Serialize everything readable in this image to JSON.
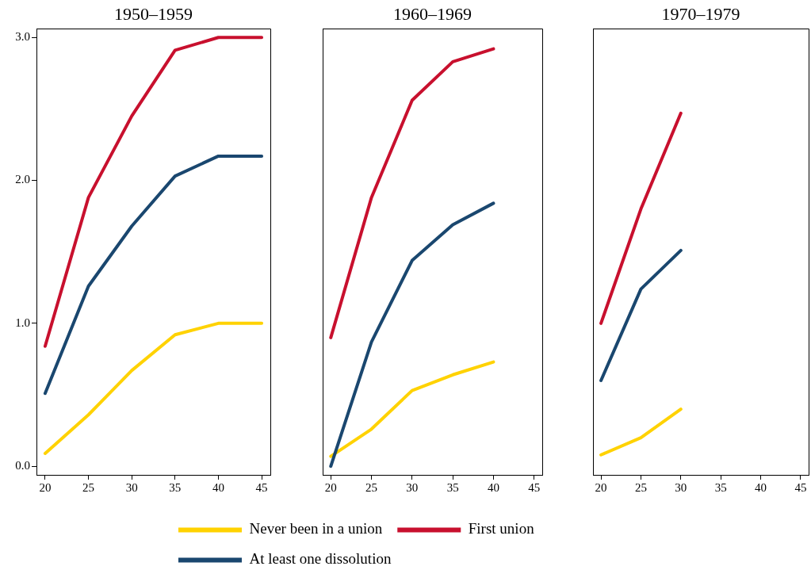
{
  "chart_data": [
    {
      "type": "line",
      "title": "1950–1959",
      "x": [
        20,
        25,
        30,
        35,
        40,
        45
      ],
      "series": [
        {
          "name": "Never been in a union",
          "color": "#ffd200",
          "values": [
            0.09,
            0.36,
            0.67,
            0.92,
            1.0,
            1.0
          ]
        },
        {
          "name": "First union",
          "color": "#c8102e",
          "values": [
            0.84,
            1.88,
            2.45,
            2.91,
            3.0,
            3.0
          ]
        },
        {
          "name": "At least one dissolution",
          "color": "#1a476f",
          "values": [
            0.51,
            1.26,
            1.68,
            2.03,
            2.17,
            2.17
          ]
        }
      ],
      "xlim": [
        19,
        46
      ],
      "xticks": [
        20,
        25,
        30,
        35,
        40,
        45
      ],
      "ylim": [
        -0.06,
        3.06
      ],
      "yticks": [
        {
          "value": 0,
          "label": "0.0"
        },
        {
          "value": 1,
          "label": "1.0"
        },
        {
          "value": 2,
          "label": "2.0"
        },
        {
          "value": 3,
          "label": "3.0"
        }
      ],
      "legend": "bottom"
    },
    {
      "type": "line",
      "title": "1960–1969",
      "x": [
        20,
        25,
        30,
        35,
        40
      ],
      "series": [
        {
          "color": "#ffd200",
          "values": [
            0.07,
            0.26,
            0.53,
            0.64,
            0.73
          ]
        },
        {
          "color": "#c8102e",
          "values": [
            0.9,
            1.88,
            2.56,
            2.83,
            2.92
          ]
        },
        {
          "color": "#1a476f",
          "values": [
            0.0,
            0.87,
            1.44,
            1.69,
            1.84
          ]
        }
      ],
      "xlim": [
        19,
        46
      ],
      "xticks": [
        20,
        25,
        30,
        35,
        40,
        45
      ],
      "ylim": [
        -0.06,
        3.06
      ],
      "tick_labels": "x"
    },
    {
      "type": "line",
      "title": "1970–1979",
      "x": [
        20,
        25,
        30
      ],
      "series": [
        {
          "color": "#ffd200",
          "values": [
            0.08,
            0.2,
            0.4
          ]
        },
        {
          "color": "#c8102e",
          "values": [
            1.0,
            1.8,
            2.47
          ]
        },
        {
          "color": "#1a476f",
          "values": [
            0.6,
            1.24,
            1.51
          ]
        }
      ],
      "xlim": [
        19,
        46
      ],
      "xticks": [
        20,
        25,
        30,
        35,
        40,
        45
      ],
      "ylim": [
        -0.06,
        3.06
      ],
      "tick_labels": "x"
    }
  ]
}
